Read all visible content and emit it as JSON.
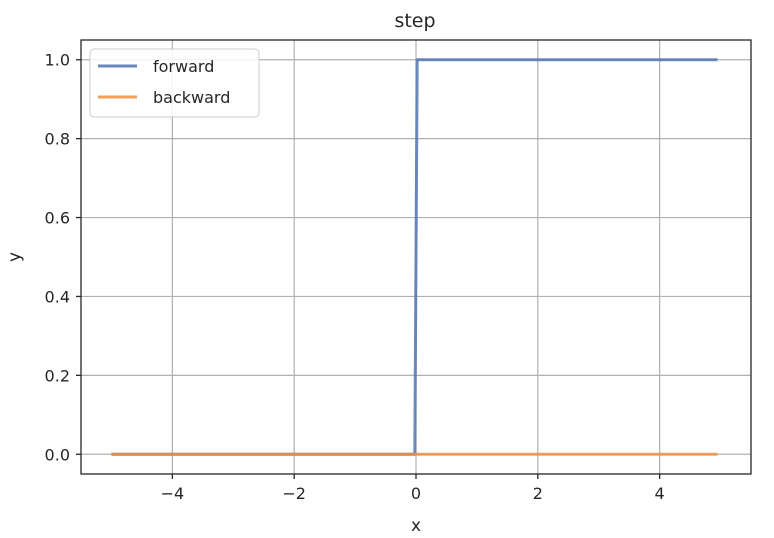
{
  "chart_data": {
    "type": "line",
    "title": "step",
    "xlabel": "x",
    "ylabel": "y",
    "xlim": [
      -5.5,
      5.5
    ],
    "ylim": [
      -0.05,
      1.05
    ],
    "xticks": [
      -4,
      -2,
      0,
      2,
      4
    ],
    "xtick_labels": [
      "−4",
      "−2",
      "0",
      "2",
      "4"
    ],
    "yticks": [
      0.0,
      0.2,
      0.4,
      0.6,
      0.8,
      1.0
    ],
    "ytick_labels": [
      "0.0",
      "0.2",
      "0.4",
      "0.6",
      "0.8",
      "1.0"
    ],
    "grid": true,
    "legend_position": "top-left",
    "series": [
      {
        "name": "forward",
        "color": "#4c72b0",
        "x": [
          -5,
          -0.02,
          0.02,
          4.95
        ],
        "y": [
          0,
          0,
          1,
          1
        ]
      },
      {
        "name": "backward",
        "color": "#f28e3c",
        "x": [
          -5,
          4.95
        ],
        "y": [
          0,
          0
        ]
      }
    ]
  }
}
